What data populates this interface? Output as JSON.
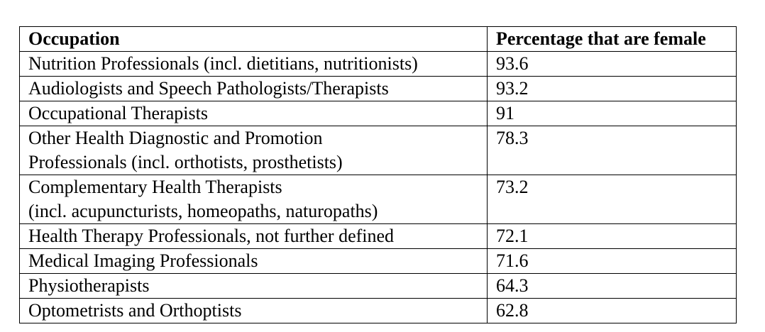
{
  "table": {
    "headers": [
      "Occupation",
      "Percentage that are female"
    ],
    "rows": [
      {
        "occupation_lines": [
          "Nutrition Professionals (incl. dietitians, nutritionists)"
        ],
        "percentage": "93.6"
      },
      {
        "occupation_lines": [
          "Audiologists and Speech Pathologists/Therapists"
        ],
        "percentage": "93.2"
      },
      {
        "occupation_lines": [
          "Occupational Therapists"
        ],
        "percentage": "91"
      },
      {
        "occupation_lines": [
          "Other Health Diagnostic and Promotion",
          "Professionals (incl. orthotists, prosthetists)"
        ],
        "percentage": "78.3"
      },
      {
        "occupation_lines": [
          "Complementary Health Therapists",
          "(incl. acupuncturists, homeopaths, naturopaths)"
        ],
        "percentage": "73.2"
      },
      {
        "occupation_lines": [
          "Health Therapy Professionals, not further defined"
        ],
        "percentage": "72.1"
      },
      {
        "occupation_lines": [
          "Medical Imaging Professionals"
        ],
        "percentage": "71.6"
      },
      {
        "occupation_lines": [
          "Physiotherapists"
        ],
        "percentage": "64.3"
      },
      {
        "occupation_lines": [
          "Optometrists and Orthoptists"
        ],
        "percentage": "62.8"
      }
    ]
  }
}
